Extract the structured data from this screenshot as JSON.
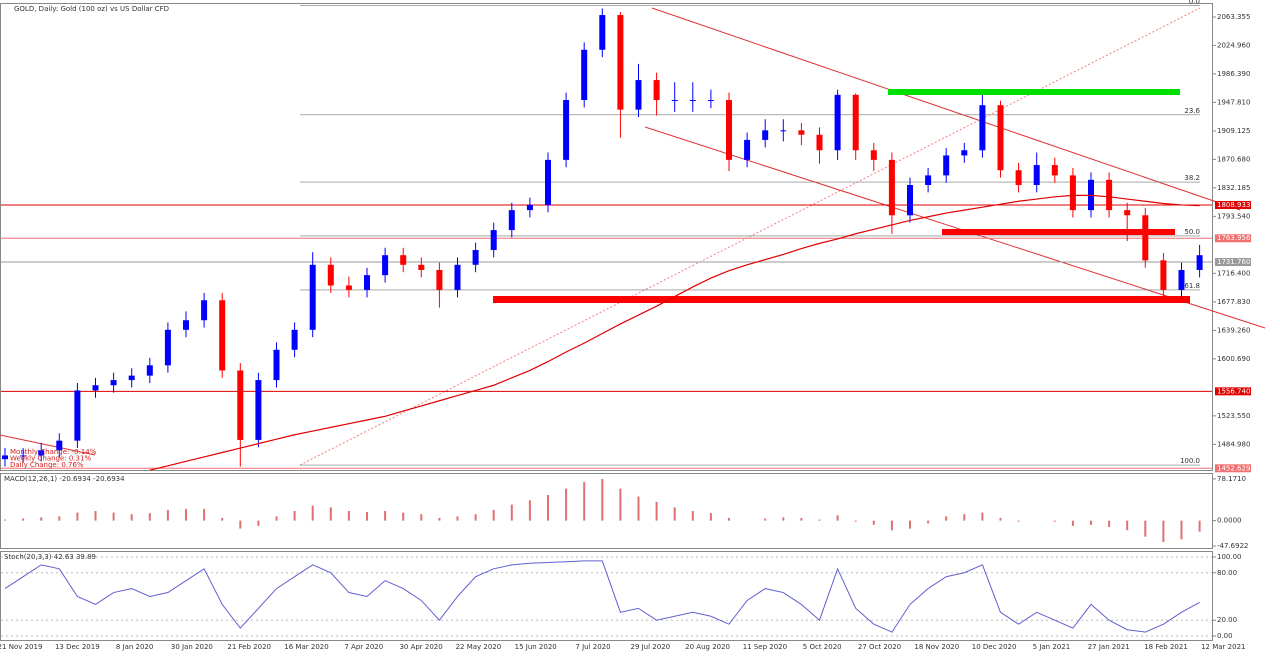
{
  "chart_data": {
    "type": "candlestick",
    "title": "GOLD, Daily:  Gold (100 oz) vs US Dollar CFD",
    "changes": [
      "Monthly Change: -0.14%",
      "Weekly Change: 0.31%",
      "Daily Change: 0.76%"
    ],
    "ylim": [
      1450.3,
      2080.95
    ],
    "yticks": [
      2063.355,
      {
        "value": 2024.96,
        "label": "2024.960"
      },
      {
        "value": 1986.39,
        "label": "1986.390"
      },
      {
        "value": 1947.81,
        "label": "1947.810"
      },
      1909.125,
      {
        "value": 1870.68,
        "label": "1870.680"
      },
      1832.185,
      {
        "value": 1793.54,
        "label": "1793.540"
      },
      {
        "value": 1716.4,
        "label": "1716.400"
      },
      {
        "value": 1677.83,
        "label": "1677.830"
      },
      {
        "value": 1639.26,
        "label": "1639.260"
      },
      {
        "value": 1600.69,
        "label": "1600.690"
      },
      {
        "value": 1523.55,
        "label": "1523.550"
      },
      {
        "value": 1484.98,
        "label": "1484.980"
      }
    ],
    "levels": [
      {
        "value": 1808.933,
        "color": "#e00000"
      },
      {
        "value": 1763.956,
        "color": "#f07070"
      },
      {
        "value": 1731.76,
        "label": "1731.760",
        "color": "#999999"
      },
      {
        "value": 1556.74,
        "label": "1556.740",
        "color": "#e00000"
      },
      {
        "value": 1452.629,
        "color": "#f07070"
      }
    ],
    "fib_levels": [
      {
        "label": "0.0",
        "price": 2079
      },
      {
        "label": "23.6",
        "price": 1931
      },
      {
        "label": "38.2",
        "price": 1840
      },
      {
        "label": "50.0",
        "price": 1767
      },
      {
        "label": "61.8",
        "price": 1694
      },
      {
        "label": "100.0",
        "price": 1457
      }
    ],
    "up_color": "#0000ff",
    "down_color": "#ff0000",
    "open": [
      1465,
      1470,
      1470,
      1477,
      1490,
      1558,
      1565,
      1572,
      1578,
      1592,
      1640,
      1653,
      1680,
      1585,
      1491,
      1572,
      1613,
      1640,
      1728,
      1700,
      1694,
      1714,
      1741,
      1728,
      1721,
      1694,
      1728,
      1748,
      1775,
      1802,
      1809,
      1870,
      1951,
      2019,
      2066,
      1938,
      1978,
      1951,
      1951,
      1951,
      1951,
      1870,
      1897,
      1910,
      1910,
      1904,
      1883,
      1958,
      1883,
      1870,
      1795,
      1836,
      1849,
      1876,
      1883,
      1944,
      1856,
      1836,
      1863,
      1849,
      1802,
      1843,
      1802,
      1795,
      1734,
      1694,
      1721
    ],
    "high": [
      1480,
      1480,
      1487,
      1500,
      1568,
      1575,
      1582,
      1588,
      1602,
      1650,
      1665,
      1690,
      1690,
      1595,
      1582,
      1623,
      1650,
      1745,
      1738,
      1712,
      1724,
      1751,
      1751,
      1738,
      1731,
      1738,
      1758,
      1785,
      1812,
      1819,
      1880,
      1961,
      2029,
      2075,
      2070,
      2000,
      1988,
      1975,
      1975,
      1965,
      1961,
      1907,
      1925,
      1925,
      1920,
      1914,
      1965,
      1960,
      1893,
      1880,
      1846,
      1859,
      1886,
      1893,
      1958,
      1950,
      1866,
      1880,
      1873,
      1859,
      1853,
      1853,
      1812,
      1805,
      1744,
      1731,
      1755
    ],
    "low": [
      1455,
      1460,
      1462,
      1467,
      1480,
      1548,
      1555,
      1562,
      1568,
      1582,
      1630,
      1643,
      1575,
      1455,
      1481,
      1562,
      1603,
      1630,
      1690,
      1684,
      1684,
      1704,
      1718,
      1711,
      1670,
      1684,
      1718,
      1738,
      1765,
      1792,
      1799,
      1860,
      1941,
      2009,
      1900,
      1928,
      1930,
      1935,
      1935,
      1940,
      1855,
      1860,
      1887,
      1895,
      1890,
      1865,
      1870,
      1870,
      1855,
      1770,
      1785,
      1826,
      1839,
      1866,
      1873,
      1846,
      1826,
      1826,
      1839,
      1792,
      1792,
      1792,
      1760,
      1724,
      1680,
      1684,
      1711
    ],
    "close": [
      1470,
      1470,
      1477,
      1490,
      1558,
      1565,
      1572,
      1578,
      1592,
      1640,
      1653,
      1680,
      1585,
      1491,
      1572,
      1613,
      1640,
      1728,
      1700,
      1694,
      1714,
      1741,
      1728,
      1721,
      1694,
      1728,
      1748,
      1775,
      1802,
      1809,
      1870,
      1951,
      2019,
      2066,
      1938,
      1978,
      1951,
      1951,
      1951,
      1951,
      1870,
      1897,
      1910,
      1910,
      1904,
      1883,
      1958,
      1883,
      1870,
      1795,
      1836,
      1849,
      1876,
      1883,
      1944,
      1856,
      1836,
      1863,
      1849,
      1802,
      1843,
      1802,
      1795,
      1734,
      1694,
      1721,
      1741
    ],
    "ma_color": "#e00000",
    "ma": [
      null,
      null,
      null,
      null,
      null,
      null,
      null,
      null,
      1450,
      1456,
      1462,
      1468,
      1474,
      1480,
      1486,
      1492,
      1498,
      1503,
      1508,
      1513,
      1518,
      1523,
      1530,
      1537,
      1544,
      1551,
      1558,
      1565,
      1575,
      1585,
      1597,
      1610,
      1622,
      1635,
      1648,
      1660,
      1672,
      1685,
      1698,
      1710,
      1720,
      1728,
      1735,
      1742,
      1750,
      1757,
      1763,
      1770,
      1776,
      1782,
      1788,
      1793,
      1798,
      1802,
      1806,
      1810,
      1814,
      1817,
      1820,
      1822,
      1822,
      1820,
      1817,
      1814,
      1811,
      1809,
      1808
    ],
    "macd": {
      "label": "MACD(12,26,1) -20.6934 -20.6934",
      "ylim": [
        -51.3,
        87.3
      ],
      "yticks": [
        {
          "value": 78.171,
          "label": "78.1710"
        },
        {
          "value": 0,
          "label": "0.0000"
        },
        -47.6922
      ],
      "color": "#e07070",
      "values": [
        2,
        4,
        6,
        8,
        15,
        18,
        15,
        12,
        14,
        20,
        22,
        22,
        5,
        -15,
        -10,
        8,
        18,
        28,
        25,
        18,
        16,
        18,
        15,
        12,
        5,
        8,
        12,
        20,
        30,
        38,
        48,
        60,
        72,
        78,
        60,
        45,
        35,
        25,
        18,
        14,
        5,
        0,
        4,
        6,
        5,
        2,
        10,
        -2,
        -8,
        -18,
        -15,
        -5,
        8,
        12,
        15,
        5,
        -2,
        0,
        -2,
        -10,
        -8,
        -12,
        -18,
        -30,
        -40,
        -35,
        -20.6934
      ]
    },
    "stoch": {
      "label": "Stoch(20,3,3) 42.63 39.89",
      "ylim": [
        -5,
        106.25
      ],
      "yticks": [
        {
          "value": 100,
          "label": "100.00"
        },
        {
          "value": 80,
          "label": "80.00"
        },
        {
          "value": 20,
          "label": "20.00"
        },
        {
          "value": 0,
          "label": "0.00"
        }
      ],
      "color": "#6060d0",
      "values": [
        60,
        75,
        90,
        85,
        50,
        40,
        55,
        60,
        50,
        55,
        70,
        85,
        40,
        10,
        35,
        60,
        75,
        90,
        80,
        55,
        50,
        70,
        60,
        45,
        20,
        50,
        75,
        85,
        90,
        92,
        93,
        94,
        95,
        95,
        30,
        35,
        20,
        25,
        30,
        25,
        15,
        45,
        60,
        55,
        40,
        20,
        85,
        35,
        15,
        5,
        40,
        60,
        75,
        80,
        90,
        30,
        15,
        30,
        20,
        10,
        40,
        20,
        8,
        5,
        15,
        30,
        42.63
      ]
    },
    "x_labels": [
      "21 Nov 2019",
      "13 Dec 2019",
      "8 Jan 2020",
      "30 Jan 2020",
      "21 Feb 2020",
      "16 Mar 2020",
      "7 Apr 2020",
      "30 Apr 2020",
      "22 May 2020",
      "15 Jun 2020",
      "7 Jul 2020",
      "29 Jul 2020",
      "20 Aug 2020",
      "11 Sep 2020",
      "5 Oct 2020",
      "27 Oct 2020",
      "18 Nov 2020",
      "10 Dec 2020",
      "5 Jan 2021",
      "27 Jan 2021",
      "18 Feb 2021",
      "12 Mar 2021"
    ]
  }
}
